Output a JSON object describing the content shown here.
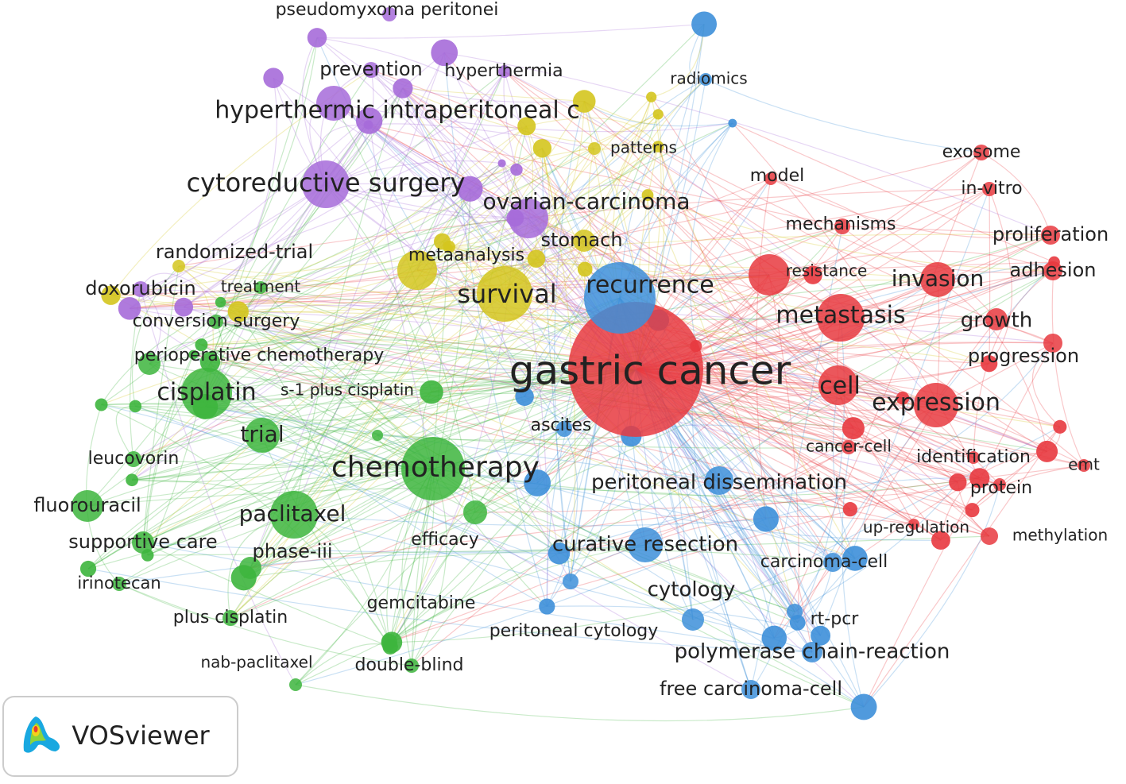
{
  "clusters": [
    {
      "color": "#e8393f",
      "nodes": [
        "gastric cancer",
        "metastasis",
        "expression",
        "cell",
        "invasion",
        "model",
        "exosome",
        "in-vitro",
        "mechanisms",
        "proliferation",
        "resistance",
        "adhesion",
        "growth",
        "progression",
        "cancer-cell",
        "identification",
        "emt",
        "protein",
        "up-regulation",
        "methylation"
      ]
    },
    {
      "color": "#3db53d",
      "nodes": [
        "chemotherapy",
        "cisplatin",
        "trial",
        "paclitaxel",
        "fluorouracil",
        "supportive care",
        "phase-iii",
        "irinotecan",
        "plus cisplatin",
        "nab-paclitaxel",
        "double-blind",
        "gemcitabine",
        "efficacy",
        "leucovorin",
        "s-1 plus cisplatin",
        "perioperative chemotherapy",
        "conversion surgery",
        "treatment"
      ]
    },
    {
      "color": "#3d8fd9",
      "nodes": [
        "recurrence",
        "radiomics",
        "ascites",
        "peritoneal dissemination",
        "curative resection",
        "carcinoma-cell",
        "cytology",
        "rt-pcr",
        "peritoneal cytology",
        "polymerase chain-reaction",
        "free carcinoma-cell"
      ]
    },
    {
      "color": "#d4c51e",
      "nodes": [
        "survival",
        "metaanalysis",
        "stomach",
        "patterns",
        "randomized-trial"
      ]
    },
    {
      "color": "#a66bd9",
      "nodes": [
        "cytoreductive surgery",
        "hyperthermic intraperitoneal c",
        "ovarian-carcinoma",
        "prevention",
        "hyperthermia",
        "pseudomyxoma peritonei",
        "doxorubicin"
      ]
    }
  ],
  "logo": {
    "text": "VOSviewer"
  }
}
